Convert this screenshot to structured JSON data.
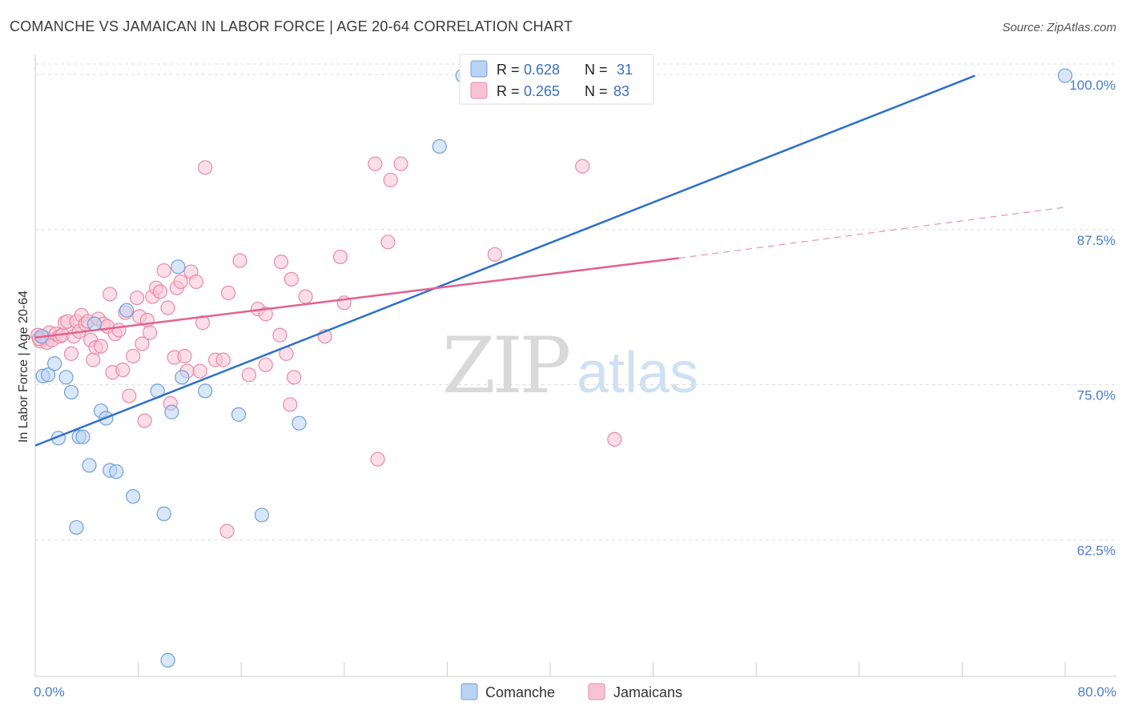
{
  "title": "COMANCHE VS JAMAICAN IN LABOR FORCE | AGE 20-64 CORRELATION CHART",
  "source": "Source: ZipAtlas.com",
  "watermark": {
    "zip": "ZIP",
    "atlas": "atlas"
  },
  "colors": {
    "comanche_fill": "#b9d3f3",
    "comanche_stroke": "#6f9fdc",
    "comanche_line": "#2f6fcb",
    "jamaican_fill": "#f7c3d3",
    "jamaican_stroke": "#e98aa8",
    "jamaican_line": "#e06490",
    "grid": "#dddddd",
    "tick_text": "#4a7cc9"
  },
  "legend": {
    "rows": [
      {
        "r_label": "R = ",
        "r_value": "0.628",
        "n_label": "N = ",
        "n_value": "31"
      },
      {
        "r_label": "R = ",
        "r_value": "0.265",
        "n_label": "N = ",
        "n_value": "83"
      }
    ]
  },
  "chart_data": {
    "type": "scatter",
    "title": "COMANCHE VS JAMAICAN IN LABOR FORCE | AGE 20-64 CORRELATION CHART",
    "xlabel": "",
    "ylabel": "In Labor Force | Age 20-64",
    "xlim": [
      0,
      80
    ],
    "ylim": [
      51.5,
      102
    ],
    "x_tick_labels": [
      "0.0%",
      "80.0%"
    ],
    "y_ticks": [
      62.5,
      75.0,
      87.5,
      100.0
    ],
    "y_tick_labels": [
      "62.5%",
      "75.0%",
      "87.5%",
      "100.0%"
    ],
    "grid": true,
    "legend_placement": "top-center",
    "series": [
      {
        "name": "Comanche",
        "points": [
          [
            0.5,
            78.9
          ],
          [
            0.6,
            75.7
          ],
          [
            1.0,
            75.8
          ],
          [
            1.5,
            76.7
          ],
          [
            1.8,
            70.7
          ],
          [
            2.4,
            75.6
          ],
          [
            2.8,
            74.4
          ],
          [
            3.2,
            63.5
          ],
          [
            3.4,
            70.8
          ],
          [
            3.7,
            70.8
          ],
          [
            4.2,
            68.5
          ],
          [
            4.6,
            79.9
          ],
          [
            5.1,
            72.9
          ],
          [
            5.5,
            72.3
          ],
          [
            5.8,
            68.1
          ],
          [
            6.3,
            68.0
          ],
          [
            7.1,
            81.0
          ],
          [
            7.6,
            66.0
          ],
          [
            9.5,
            74.5
          ],
          [
            10.0,
            64.6
          ],
          [
            10.3,
            52.8
          ],
          [
            10.6,
            72.8
          ],
          [
            11.1,
            84.5
          ],
          [
            11.4,
            75.6
          ],
          [
            13.2,
            74.5
          ],
          [
            15.8,
            72.6
          ],
          [
            17.6,
            64.5
          ],
          [
            20.5,
            71.9
          ],
          [
            31.4,
            94.2
          ],
          [
            33.2,
            99.9
          ],
          [
            80.0,
            99.9
          ]
        ],
        "trend": {
          "x": [
            0,
            73
          ],
          "y": [
            70.1,
            99.9
          ]
        }
      },
      {
        "name": "Jamaicans",
        "points": [
          [
            0.2,
            79.0
          ],
          [
            0.4,
            78.5
          ],
          [
            0.7,
            78.8
          ],
          [
            0.9,
            78.4
          ],
          [
            1.1,
            79.2
          ],
          [
            1.3,
            78.6
          ],
          [
            1.6,
            79.1
          ],
          [
            1.9,
            78.9
          ],
          [
            2.1,
            79.0
          ],
          [
            2.3,
            80.0
          ],
          [
            2.5,
            80.1
          ],
          [
            2.8,
            77.5
          ],
          [
            3.0,
            78.9
          ],
          [
            3.2,
            80.1
          ],
          [
            3.4,
            79.3
          ],
          [
            3.6,
            80.6
          ],
          [
            3.9,
            79.9
          ],
          [
            4.1,
            80.1
          ],
          [
            4.3,
            78.6
          ],
          [
            4.5,
            77.0
          ],
          [
            4.7,
            78.0
          ],
          [
            4.9,
            80.3
          ],
          [
            5.1,
            78.1
          ],
          [
            5.3,
            79.9
          ],
          [
            5.6,
            79.7
          ],
          [
            5.8,
            82.3
          ],
          [
            6.0,
            76.0
          ],
          [
            6.2,
            79.1
          ],
          [
            6.5,
            79.4
          ],
          [
            6.8,
            76.2
          ],
          [
            7.0,
            80.8
          ],
          [
            7.3,
            74.1
          ],
          [
            7.6,
            77.3
          ],
          [
            7.9,
            82.0
          ],
          [
            8.1,
            80.5
          ],
          [
            8.3,
            78.3
          ],
          [
            8.5,
            72.1
          ],
          [
            8.7,
            80.2
          ],
          [
            8.9,
            79.2
          ],
          [
            9.1,
            82.1
          ],
          [
            9.4,
            82.8
          ],
          [
            9.7,
            82.5
          ],
          [
            10.0,
            84.2
          ],
          [
            10.3,
            81.2
          ],
          [
            10.5,
            73.5
          ],
          [
            10.8,
            77.2
          ],
          [
            11.0,
            82.8
          ],
          [
            11.3,
            83.3
          ],
          [
            11.6,
            77.3
          ],
          [
            11.8,
            76.1
          ],
          [
            12.1,
            84.1
          ],
          [
            12.5,
            83.3
          ],
          [
            12.8,
            76.1
          ],
          [
            13.0,
            80.0
          ],
          [
            13.2,
            92.5
          ],
          [
            14.0,
            77.0
          ],
          [
            14.6,
            77.0
          ],
          [
            14.9,
            63.2
          ],
          [
            15.0,
            82.4
          ],
          [
            15.9,
            85.0
          ],
          [
            16.6,
            75.8
          ],
          [
            17.3,
            81.1
          ],
          [
            17.9,
            80.7
          ],
          [
            17.9,
            76.6
          ],
          [
            19.0,
            79.0
          ],
          [
            19.1,
            84.9
          ],
          [
            19.5,
            77.5
          ],
          [
            19.8,
            73.4
          ],
          [
            19.9,
            83.5
          ],
          [
            20.1,
            75.6
          ],
          [
            21.0,
            82.1
          ],
          [
            22.5,
            78.9
          ],
          [
            23.7,
            85.3
          ],
          [
            24.0,
            81.6
          ],
          [
            26.4,
            92.8
          ],
          [
            26.6,
            69.0
          ],
          [
            27.4,
            86.5
          ],
          [
            27.6,
            91.5
          ],
          [
            28.4,
            92.8
          ],
          [
            35.7,
            85.5
          ],
          [
            42.5,
            92.6
          ],
          [
            45.0,
            70.6
          ],
          [
            0.3,
            78.7
          ]
        ],
        "trend": {
          "x": [
            0,
            50
          ],
          "y": [
            78.8,
            85.2
          ]
        },
        "trend_dashed": {
          "x": [
            50,
            80
          ],
          "y": [
            85.2,
            89.3
          ]
        }
      }
    ]
  }
}
